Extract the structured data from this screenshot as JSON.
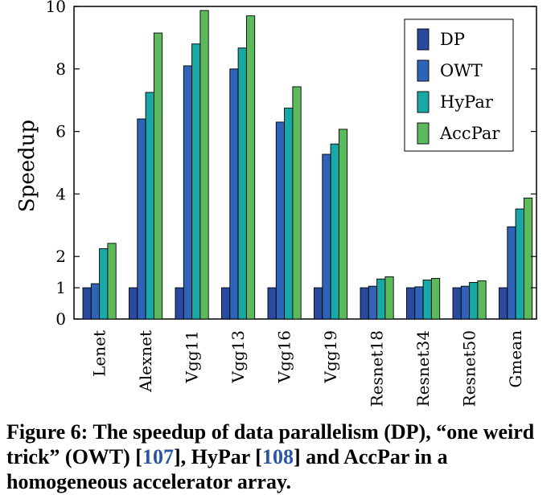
{
  "chart_data": {
    "type": "bar",
    "ylabel": "Speedup",
    "xlabel": "",
    "ylim": [
      0,
      10
    ],
    "yticks": [
      0,
      1,
      2,
      4,
      6,
      8,
      10
    ],
    "legend_position": "top-right",
    "categories": [
      "Lenet",
      "Alexnet",
      "Vgg11",
      "Vgg13",
      "Vgg16",
      "Vgg19",
      "Resnet18",
      "Resnet34",
      "Resnet50",
      "Gmean"
    ],
    "series": [
      {
        "name": "DP",
        "color": "#2a4aa0",
        "values": [
          1.0,
          1.0,
          1.0,
          1.0,
          1.0,
          1.0,
          1.0,
          1.0,
          1.0,
          1.0
        ]
      },
      {
        "name": "OWT",
        "color": "#2e63b8",
        "values": [
          1.13,
          6.4,
          8.1,
          8.0,
          6.3,
          5.27,
          1.05,
          1.03,
          1.05,
          2.95
        ]
      },
      {
        "name": "HyPar",
        "color": "#18a8a5",
        "values": [
          2.25,
          7.25,
          8.8,
          8.67,
          6.75,
          5.6,
          1.28,
          1.25,
          1.17,
          3.52
        ]
      },
      {
        "name": "AccPar",
        "color": "#5cba5c",
        "values": [
          2.42,
          9.15,
          9.87,
          9.7,
          7.43,
          6.07,
          1.35,
          1.3,
          1.22,
          3.87
        ]
      }
    ]
  },
  "caption": {
    "prefix": "Figure 6:  The speedup of data parallelism (DP), “one weird trick” (OWT) [",
    "ref1": "107",
    "middle": "], HyPar [",
    "ref2": "108",
    "suffix": "] and AccPar in a homogeneous accelerator array."
  }
}
